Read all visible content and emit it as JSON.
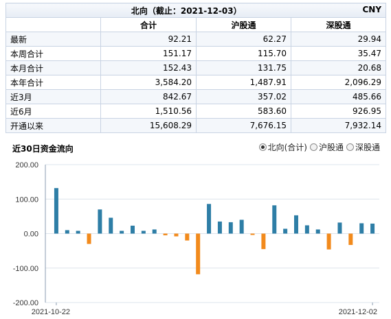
{
  "table": {
    "title": "北向（截止：2021-12-03）",
    "currency": "CNY",
    "columns": [
      "合计",
      "沪股通",
      "深股通"
    ],
    "rows": [
      {
        "label": "最新",
        "values": [
          "92.21",
          "62.27",
          "29.94"
        ]
      },
      {
        "label": "本周合计",
        "values": [
          "151.17",
          "115.70",
          "35.47"
        ]
      },
      {
        "label": "本月合计",
        "values": [
          "152.43",
          "131.75",
          "20.68"
        ]
      },
      {
        "label": "本年合计",
        "values": [
          "3,584.20",
          "1,487.91",
          "2,096.29"
        ]
      },
      {
        "label": "近3月",
        "values": [
          "842.67",
          "357.02",
          "485.66"
        ]
      },
      {
        "label": "近6月",
        "values": [
          "1,510.56",
          "583.60",
          "926.95"
        ]
      },
      {
        "label": "开通以来",
        "values": [
          "15,608.29",
          "7,676.15",
          "7,932.14"
        ]
      }
    ]
  },
  "chart_header": {
    "title": "近30日资金流向",
    "options": [
      {
        "label": "北向(合计)",
        "selected": true
      },
      {
        "label": "沪股通",
        "selected": false
      },
      {
        "label": "深股通",
        "selected": false
      }
    ]
  },
  "chart_data": {
    "type": "bar",
    "title": "近30日资金流向",
    "series_label": "北向(合计)",
    "values": [
      132,
      10,
      8,
      -30,
      70,
      46,
      8,
      23,
      8,
      12,
      -5,
      -8,
      -20,
      -118,
      86,
      35,
      33,
      40,
      -4,
      -45,
      82,
      14,
      53,
      24,
      12,
      -46,
      32,
      -33,
      30,
      29
    ],
    "x_start_label": "2021-10-22",
    "x_end_label": "2021-12-02",
    "ylim": [
      -200,
      200
    ],
    "yticks": [
      "200.00",
      "100.00",
      "0.00",
      "-100.00",
      "-200.00"
    ],
    "ytick_values": [
      200,
      100,
      0,
      -100,
      -200
    ],
    "colors": {
      "positive": "#2e7ea6",
      "negative": "#f28a1c",
      "grid": "#dde4ec",
      "axis": "#8a9bb0"
    },
    "grid": true
  }
}
